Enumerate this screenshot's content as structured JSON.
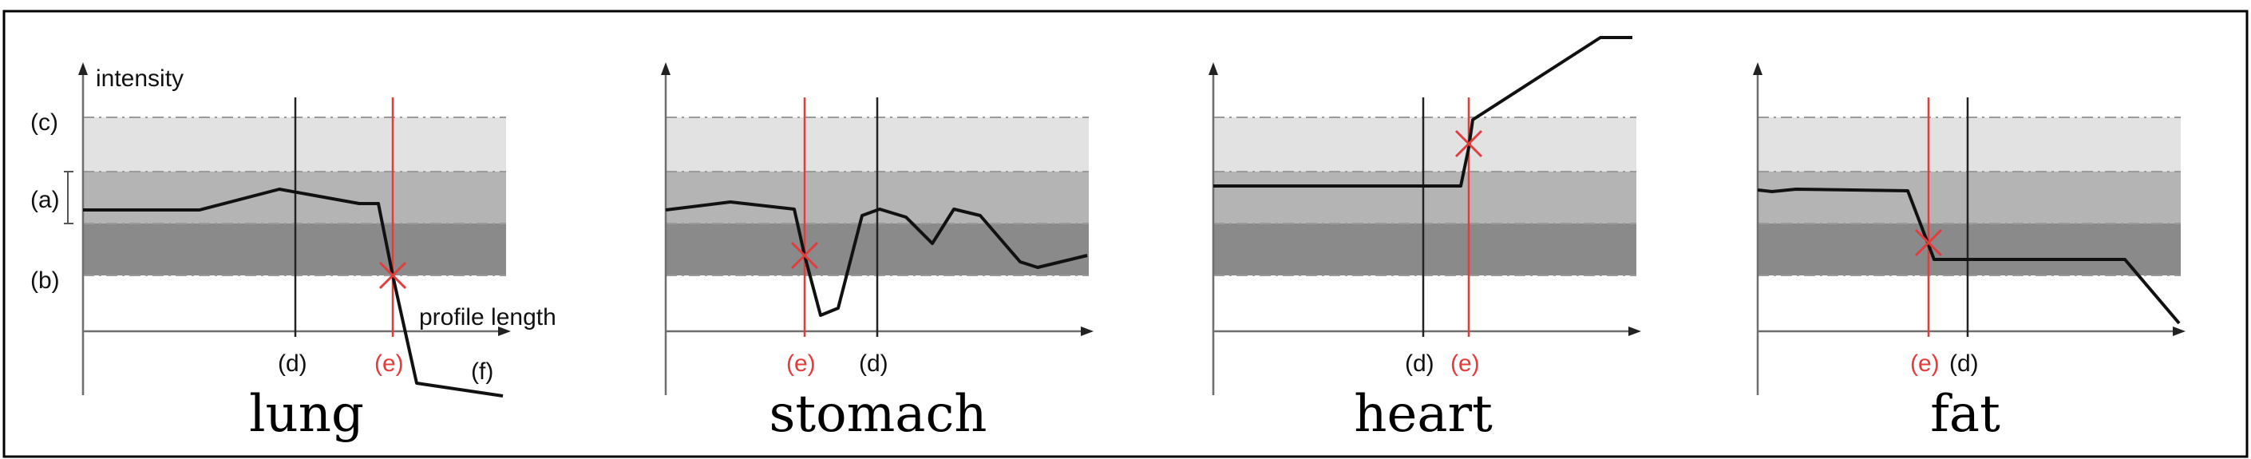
{
  "labels": {
    "intensity": "intensity",
    "profile_length": "profile length",
    "c": "(c)",
    "a": "(a)",
    "b": "(b)",
    "d": "(d)",
    "e": "(e)",
    "f": "(f)"
  },
  "panels": [
    {
      "title": "lung"
    },
    {
      "title": "stomach"
    },
    {
      "title": "heart"
    },
    {
      "title": "fat"
    }
  ],
  "colors": {
    "band_c": "#e2e2e2",
    "band_a": "#b4b4b4",
    "band_b": "#8a8a8a",
    "marker_e": "#e23c3c",
    "line_d": "#222222"
  }
}
